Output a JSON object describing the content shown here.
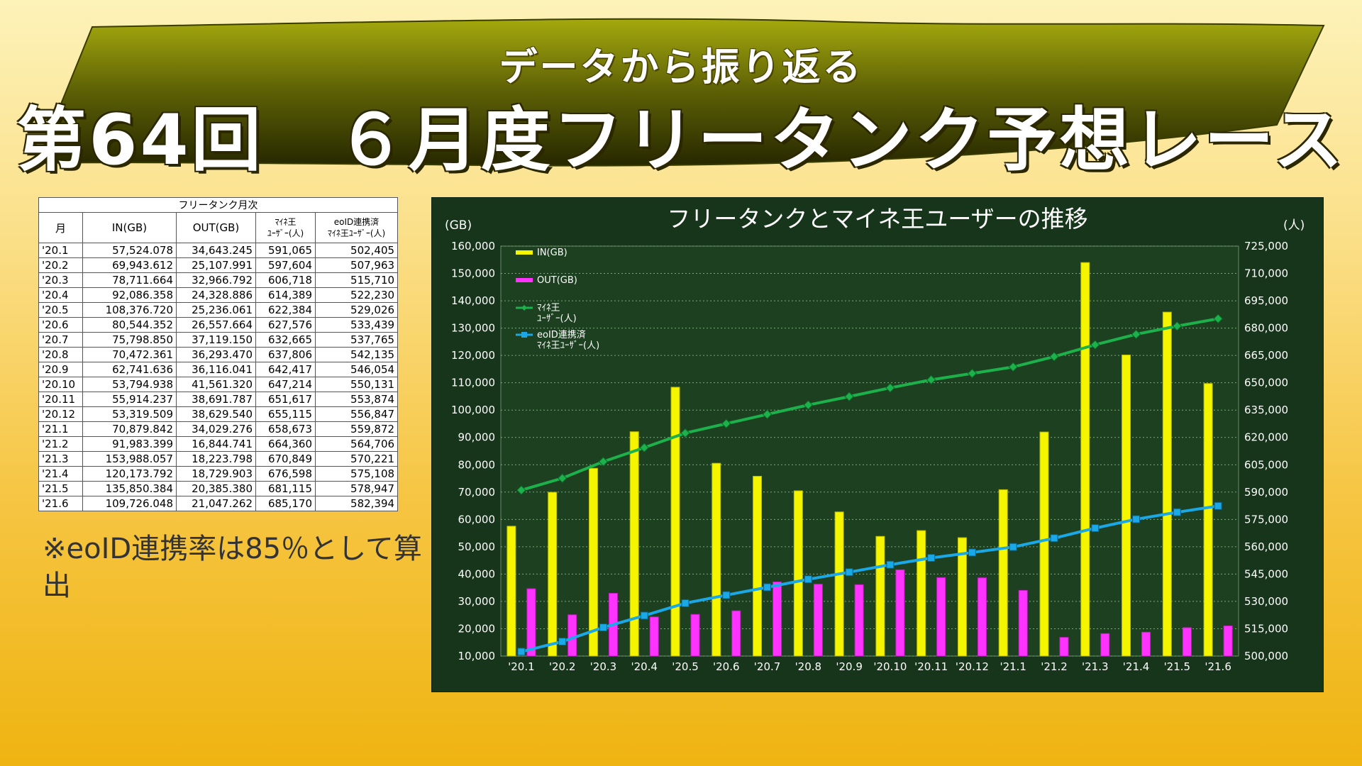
{
  "header": {
    "subtitle": "データから振り返る",
    "title": "第64回　６月度フリータンク予想レース"
  },
  "table": {
    "caption": "フリータンク月次",
    "headers": [
      "月",
      "IN(GB)",
      "OUT(GB)",
      "ﾏｲﾈ王\nﾕｰｻﾞｰ(人)",
      "eoID連携済\nﾏｲﾈ王ﾕｰｻﾞｰ(人)"
    ],
    "rows": [
      [
        "'20.1",
        "57,524.078",
        "34,643.245",
        "591,065",
        "502,405"
      ],
      [
        "'20.2",
        "69,943.612",
        "25,107.991",
        "597,604",
        "507,963"
      ],
      [
        "'20.3",
        "78,711.664",
        "32,966.792",
        "606,718",
        "515,710"
      ],
      [
        "'20.4",
        "92,086.358",
        "24,328.886",
        "614,389",
        "522,230"
      ],
      [
        "'20.5",
        "108,376.720",
        "25,236.061",
        "622,384",
        "529,026"
      ],
      [
        "'20.6",
        "80,544.352",
        "26,557.664",
        "627,576",
        "533,439"
      ],
      [
        "'20.7",
        "75,798.850",
        "37,119.150",
        "632,665",
        "537,765"
      ],
      [
        "'20.8",
        "70,472.361",
        "36,293.470",
        "637,806",
        "542,135"
      ],
      [
        "'20.9",
        "62,741.636",
        "36,116.041",
        "642,417",
        "546,054"
      ],
      [
        "'20.10",
        "53,794.938",
        "41,561.320",
        "647,214",
        "550,131"
      ],
      [
        "'20.11",
        "55,914.237",
        "38,691.787",
        "651,617",
        "553,874"
      ],
      [
        "'20.12",
        "53,319.509",
        "38,629.540",
        "655,115",
        "556,847"
      ],
      [
        "'21.1",
        "70,879.842",
        "34,029.276",
        "658,673",
        "559,872"
      ],
      [
        "'21.2",
        "91,983.399",
        "16,844.741",
        "664,360",
        "564,706"
      ],
      [
        "'21.3",
        "153,988.057",
        "18,223.798",
        "670,849",
        "570,221"
      ],
      [
        "'21.4",
        "120,173.792",
        "18,729.903",
        "676,598",
        "575,108"
      ],
      [
        "'21.5",
        "135,850.384",
        "20,385.380",
        "681,115",
        "578,947"
      ],
      [
        "'21.6",
        "109,726.048",
        "21,047.262",
        "685,170",
        "582,394"
      ]
    ]
  },
  "note": "※eoID連携率は85％として算出",
  "chart_data": {
    "type": "bar",
    "title": "フリータンクとマイネ王ユーザーの推移",
    "ylabel_left": "(GB)",
    "ylabel_right": "(人)",
    "categories": [
      "'20.1",
      "'20.2",
      "'20.3",
      "'20.4",
      "'20.5",
      "'20.6",
      "'20.7",
      "'20.8",
      "'20.9",
      "'20.10",
      "'20.11",
      "'20.12",
      "'21.1",
      "'21.2",
      "'21.3",
      "'21.4",
      "'21.5",
      "'21.6"
    ],
    "ylim_left": [
      10000,
      160000
    ],
    "ylim_right": [
      500000,
      725000
    ],
    "yticks_left": [
      "10,000",
      "20,000",
      "30,000",
      "40,000",
      "50,000",
      "60,000",
      "70,000",
      "80,000",
      "90,000",
      "100,000",
      "110,000",
      "120,000",
      "130,000",
      "140,000",
      "150,000",
      "160,000"
    ],
    "yticks_right": [
      "500,000",
      "515,000",
      "530,000",
      "545,000",
      "560,000",
      "575,000",
      "590,000",
      "605,000",
      "620,000",
      "635,000",
      "650,000",
      "665,000",
      "680,000",
      "695,000",
      "710,000",
      "725,000"
    ],
    "grid": true,
    "legend_position": "top-left",
    "series": [
      {
        "name": "IN(GB)",
        "kind": "bar",
        "axis": "left",
        "color": "#f5f500",
        "values": [
          57524.078,
          69943.612,
          78711.664,
          92086.358,
          108376.72,
          80544.352,
          75798.85,
          70472.361,
          62741.636,
          53794.938,
          55914.237,
          53319.509,
          70879.842,
          91983.399,
          153988.057,
          120173.792,
          135850.384,
          109726.048
        ]
      },
      {
        "name": "OUT(GB)",
        "kind": "bar",
        "axis": "left",
        "color": "#ff33ff",
        "values": [
          34643.245,
          25107.991,
          32966.792,
          24328.886,
          25236.061,
          26557.664,
          37119.15,
          36293.47,
          36116.041,
          41561.32,
          38691.787,
          38629.54,
          34029.276,
          16844.741,
          18223.798,
          18729.903,
          20385.38,
          21047.262
        ]
      },
      {
        "name": "ﾏｲﾈ王\nﾕｰｻﾞｰ(人)",
        "kind": "line",
        "axis": "right",
        "color": "#1db14b",
        "values": [
          591065,
          597604,
          606718,
          614389,
          622384,
          627576,
          632665,
          637806,
          642417,
          647214,
          651617,
          655115,
          658673,
          664360,
          670849,
          676598,
          681115,
          685170
        ]
      },
      {
        "name": "eoID連携済\nﾏｲﾈ王ﾕｰｻﾞｰ(人)",
        "kind": "line",
        "axis": "right",
        "color": "#1aa8e6",
        "values": [
          502405,
          507963,
          515710,
          522230,
          529026,
          533439,
          537765,
          542135,
          546054,
          550131,
          553874,
          556847,
          559872,
          564706,
          570221,
          575108,
          578947,
          582394
        ]
      }
    ]
  }
}
